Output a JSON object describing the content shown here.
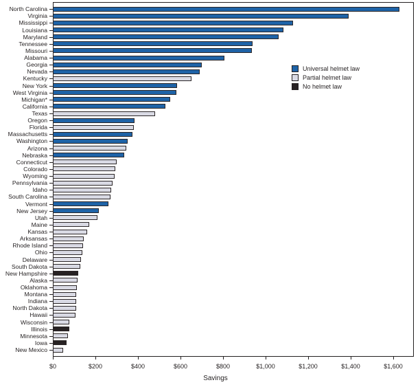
{
  "chart_data": {
    "type": "bar",
    "orientation": "horizontal",
    "title": "",
    "xlabel": "Savings",
    "ylabel": "",
    "xlim": [
      0,
      1700
    ],
    "grid": false,
    "legend_position": "inside-right-upper",
    "x_ticks": [
      {
        "value": 0,
        "label": "$0"
      },
      {
        "value": 200,
        "label": "$200"
      },
      {
        "value": 400,
        "label": "$400"
      },
      {
        "value": 600,
        "label": "$600"
      },
      {
        "value": 800,
        "label": "$800"
      },
      {
        "value": 1000,
        "label": "$1,000"
      },
      {
        "value": 1200,
        "label": "$1,200"
      },
      {
        "value": 1400,
        "label": "$1,400"
      },
      {
        "value": 1600,
        "label": "$1,600"
      }
    ],
    "legend": [
      {
        "key": "universal",
        "label": "Universal helmet law",
        "color": "#1e63a7"
      },
      {
        "key": "partial",
        "label": "Partial helmet law",
        "color": "#d9dae4"
      },
      {
        "key": "none",
        "label": "No helmet law",
        "color": "#272223"
      }
    ],
    "bars": [
      {
        "state": "North Carolina",
        "value": 1630,
        "law": "universal"
      },
      {
        "state": "Virginia",
        "value": 1390,
        "law": "universal"
      },
      {
        "state": "Mississippi",
        "value": 1130,
        "law": "universal"
      },
      {
        "state": "Louisiana",
        "value": 1085,
        "law": "universal"
      },
      {
        "state": "Maryland",
        "value": 1060,
        "law": "universal"
      },
      {
        "state": "Tennessee",
        "value": 940,
        "law": "universal"
      },
      {
        "state": "Missouri",
        "value": 935,
        "law": "universal"
      },
      {
        "state": "Alabama",
        "value": 805,
        "law": "universal"
      },
      {
        "state": "Georgia",
        "value": 700,
        "law": "universal"
      },
      {
        "state": "Nevada",
        "value": 690,
        "law": "universal"
      },
      {
        "state": "Kentucky",
        "value": 650,
        "law": "partial"
      },
      {
        "state": "New York",
        "value": 585,
        "law": "universal"
      },
      {
        "state": "West Virginia",
        "value": 580,
        "law": "universal"
      },
      {
        "state": "Michigan*",
        "value": 550,
        "law": "universal"
      },
      {
        "state": "California",
        "value": 530,
        "law": "universal"
      },
      {
        "state": "Texas",
        "value": 480,
        "law": "partial"
      },
      {
        "state": "Oregon",
        "value": 385,
        "law": "universal"
      },
      {
        "state": "Florida",
        "value": 380,
        "law": "partial"
      },
      {
        "state": "Massachusetts",
        "value": 375,
        "law": "universal"
      },
      {
        "state": "Washington",
        "value": 350,
        "law": "universal"
      },
      {
        "state": "Arizona",
        "value": 345,
        "law": "partial"
      },
      {
        "state": "Nebraska",
        "value": 335,
        "law": "universal"
      },
      {
        "state": "Connecticut",
        "value": 300,
        "law": "partial"
      },
      {
        "state": "Colorado",
        "value": 295,
        "law": "partial"
      },
      {
        "state": "Wyoming",
        "value": 290,
        "law": "partial"
      },
      {
        "state": "Pennsylvania",
        "value": 280,
        "law": "partial"
      },
      {
        "state": "Idaho",
        "value": 275,
        "law": "partial"
      },
      {
        "state": "South Carolina",
        "value": 270,
        "law": "partial"
      },
      {
        "state": "Vermont",
        "value": 260,
        "law": "universal"
      },
      {
        "state": "New Jersey",
        "value": 215,
        "law": "universal"
      },
      {
        "state": "Utah",
        "value": 210,
        "law": "partial"
      },
      {
        "state": "Maine",
        "value": 170,
        "law": "partial"
      },
      {
        "state": "Kansas",
        "value": 160,
        "law": "partial"
      },
      {
        "state": "Arksansas",
        "value": 145,
        "law": "partial"
      },
      {
        "state": "Rhode Island",
        "value": 143,
        "law": "partial"
      },
      {
        "state": "Ohio",
        "value": 140,
        "law": "partial"
      },
      {
        "state": "Delaware",
        "value": 132,
        "law": "partial"
      },
      {
        "state": "South Dakota",
        "value": 130,
        "law": "partial"
      },
      {
        "state": "New Hampshire",
        "value": 118,
        "law": "none"
      },
      {
        "state": "Alaska",
        "value": 115,
        "law": "partial"
      },
      {
        "state": "Oklahoma",
        "value": 112,
        "law": "partial"
      },
      {
        "state": "Montana",
        "value": 110,
        "law": "partial"
      },
      {
        "state": "Indiana",
        "value": 110,
        "law": "partial"
      },
      {
        "state": "North Dakota",
        "value": 110,
        "law": "partial"
      },
      {
        "state": "Hawaii",
        "value": 108,
        "law": "partial"
      },
      {
        "state": "Wisconsin",
        "value": 78,
        "law": "partial"
      },
      {
        "state": "Illinois",
        "value": 78,
        "law": "none"
      },
      {
        "state": "Minnesota",
        "value": 70,
        "law": "partial"
      },
      {
        "state": "Iowa",
        "value": 66,
        "law": "none"
      },
      {
        "state": "New Mexico",
        "value": 48,
        "law": "partial"
      }
    ]
  }
}
